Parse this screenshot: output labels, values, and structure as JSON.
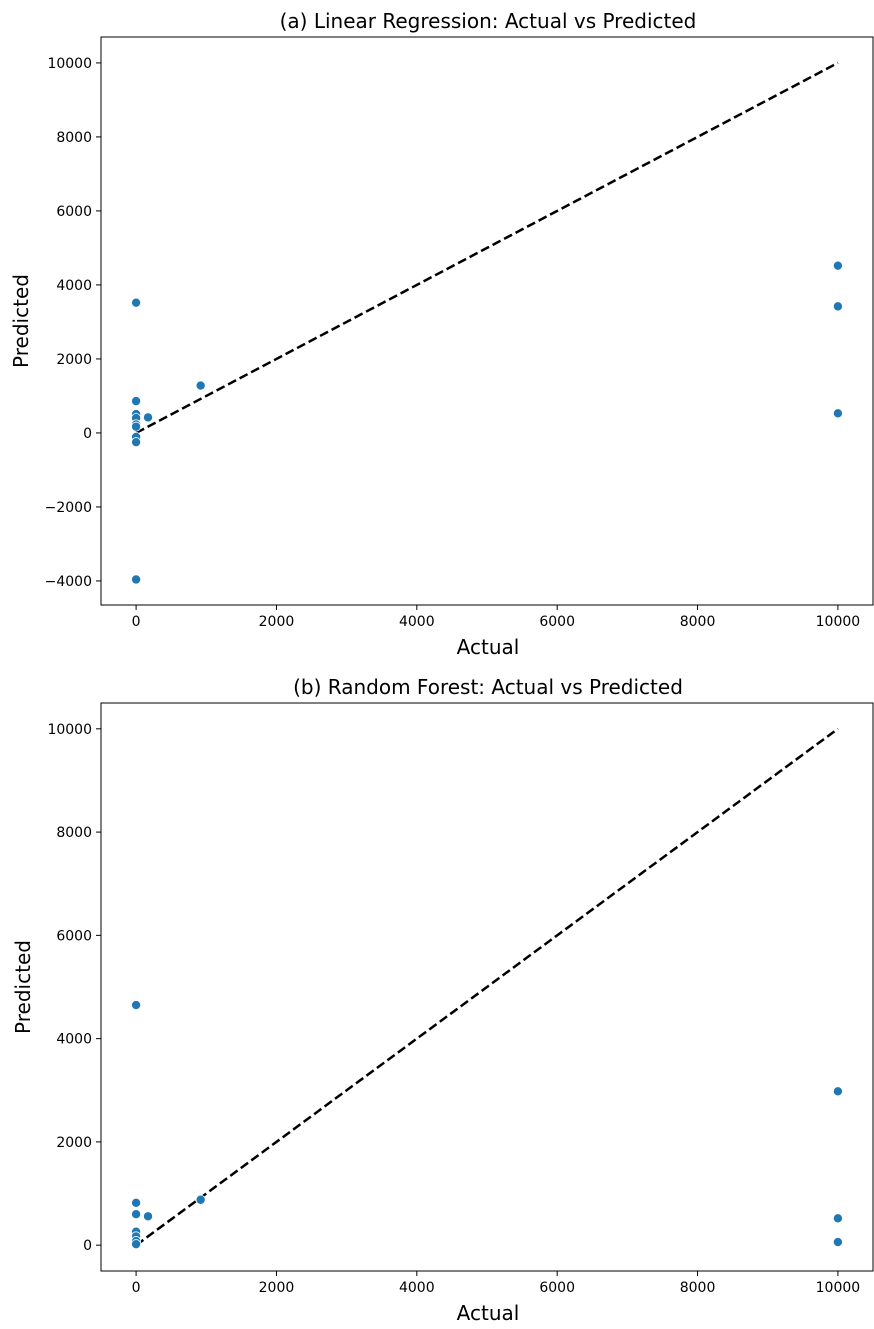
{
  "chart_data": [
    {
      "type": "scatter",
      "title": "(a) Linear Regression: Actual vs Predicted",
      "xlabel": "Actual",
      "ylabel": "Predicted",
      "xlim": [
        -500,
        10500
      ],
      "ylim": [
        -4650,
        10700
      ],
      "xticks": [
        0,
        2000,
        4000,
        6000,
        8000,
        10000
      ],
      "xtick_labels": [
        "0",
        "2000",
        "4000",
        "6000",
        "8000",
        "10000"
      ],
      "yticks": [
        -4000,
        -2000,
        0,
        2000,
        4000,
        6000,
        8000,
        10000
      ],
      "ytick_labels": [
        "−4000",
        "−2000",
        "0",
        "2000",
        "4000",
        "6000",
        "8000",
        "10000"
      ],
      "grid": false,
      "reference_line": {
        "x": [
          0,
          10000
        ],
        "y": [
          0,
          10000
        ],
        "style": "dashed",
        "color": "#000000"
      },
      "points": [
        {
          "x": 0,
          "y": 3520
        },
        {
          "x": 0,
          "y": 860
        },
        {
          "x": 0,
          "y": 510
        },
        {
          "x": 0,
          "y": 400
        },
        {
          "x": 0,
          "y": 230
        },
        {
          "x": 0,
          "y": 170
        },
        {
          "x": 0,
          "y": -110
        },
        {
          "x": 0,
          "y": -250
        },
        {
          "x": 0,
          "y": -3960
        },
        {
          "x": 170,
          "y": 420
        },
        {
          "x": 920,
          "y": 1280
        },
        {
          "x": 10000,
          "y": 4520
        },
        {
          "x": 10000,
          "y": 3420
        },
        {
          "x": 10000,
          "y": 530
        }
      ],
      "marker_color": "#1f77b4"
    },
    {
      "type": "scatter",
      "title": "(b) Random Forest: Actual vs Predicted",
      "xlabel": "Actual",
      "ylabel": "Predicted",
      "xlim": [
        -500,
        10500
      ],
      "ylim": [
        -500,
        10500
      ],
      "xticks": [
        0,
        2000,
        4000,
        6000,
        8000,
        10000
      ],
      "xtick_labels": [
        "0",
        "2000",
        "4000",
        "6000",
        "8000",
        "10000"
      ],
      "yticks": [
        0,
        2000,
        4000,
        6000,
        8000,
        10000
      ],
      "ytick_labels": [
        "0",
        "2000",
        "4000",
        "6000",
        "8000",
        "10000"
      ],
      "grid": false,
      "reference_line": {
        "x": [
          0,
          10000
        ],
        "y": [
          0,
          10000
        ],
        "style": "dashed",
        "color": "#000000"
      },
      "points": [
        {
          "x": 0,
          "y": 4650
        },
        {
          "x": 0,
          "y": 820
        },
        {
          "x": 0,
          "y": 600
        },
        {
          "x": 0,
          "y": 260
        },
        {
          "x": 0,
          "y": 170
        },
        {
          "x": 0,
          "y": 80
        },
        {
          "x": 0,
          "y": 20
        },
        {
          "x": 170,
          "y": 560
        },
        {
          "x": 920,
          "y": 880
        },
        {
          "x": 10000,
          "y": 2980
        },
        {
          "x": 10000,
          "y": 520
        },
        {
          "x": 10000,
          "y": 60
        }
      ],
      "marker_color": "#1f77b4"
    }
  ]
}
